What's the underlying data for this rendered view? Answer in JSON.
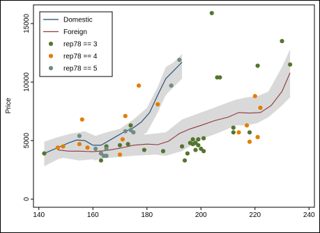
{
  "chart_data": {
    "type": "scatter",
    "title": "",
    "xlabel": "",
    "ylabel": "Price",
    "xlim": [
      138,
      242
    ],
    "ylim": [
      -700,
      16600
    ],
    "x_ticks": [
      140,
      160,
      180,
      200,
      220,
      240
    ],
    "y_ticks": [
      0,
      5000,
      10000,
      15000
    ],
    "grid": false,
    "legend": {
      "position": "top-left",
      "entries": [
        {
          "label": "Domestic",
          "kind": "line",
          "color": "#1a476f"
        },
        {
          "label": "Foreign",
          "kind": "line",
          "color": "#90353b"
        },
        {
          "label": "rep78 == 3",
          "kind": "marker",
          "color": "#55752f"
        },
        {
          "label": "rep78 == 4",
          "kind": "marker",
          "color": "#e37e00"
        },
        {
          "label": "rep78 == 5",
          "kind": "marker",
          "color": "#6e8e84"
        }
      ]
    },
    "bands": [
      {
        "name": "Domestic",
        "color": "#d9d9d9",
        "x": [
          142,
          147,
          152,
          157,
          161,
          165,
          170,
          175,
          180,
          184,
          187,
          190,
          193
        ],
        "lower": [
          2800,
          3400,
          3700,
          3700,
          3300,
          3700,
          4100,
          4900,
          5700,
          7400,
          8900,
          9600,
          10300
        ],
        "upper": [
          4900,
          5300,
          5600,
          5800,
          5400,
          5700,
          6000,
          6800,
          7800,
          9600,
          11300,
          11700,
          12400
        ]
      },
      {
        "name": "Foreign",
        "color": "#d9d9d9",
        "x": [
          147,
          155,
          165,
          175,
          183,
          187,
          193,
          200,
          207,
          213,
          217,
          221,
          225,
          230,
          233
        ],
        "lower": [
          3600,
          3300,
          3500,
          3700,
          3800,
          3700,
          4100,
          5100,
          5700,
          6300,
          6300,
          6500,
          7000,
          8000,
          8700
        ],
        "upper": [
          4700,
          4700,
          4600,
          5400,
          5600,
          5700,
          6800,
          7400,
          8000,
          8500,
          8700,
          8800,
          9200,
          11300,
          12800
        ]
      }
    ],
    "series": [
      {
        "name": "Domestic",
        "type": "line",
        "color": "#1a476f",
        "x": [
          142,
          145,
          148,
          151,
          154,
          157,
          160,
          163,
          166,
          169,
          172,
          175,
          178,
          181,
          184,
          187,
          190,
          193
        ],
        "y": [
          3900,
          4200,
          4500,
          4800,
          5050,
          5000,
          4600,
          4600,
          5000,
          5400,
          5800,
          6100,
          6600,
          7400,
          8900,
          10300,
          11000,
          11700
        ]
      },
      {
        "name": "Foreign",
        "type": "line",
        "color": "#90353b",
        "x": [
          147,
          151,
          155,
          160,
          165,
          170,
          175,
          180,
          184,
          188,
          192,
          196,
          200,
          205,
          210,
          214,
          218,
          222,
          226,
          230,
          233
        ],
        "y": [
          4200,
          4100,
          4100,
          4050,
          4150,
          4350,
          4600,
          4700,
          4650,
          4950,
          5600,
          6000,
          6300,
          6700,
          7000,
          7400,
          7350,
          7400,
          8000,
          9200,
          10800
        ]
      },
      {
        "name": "rep78 == 3",
        "type": "scatter",
        "color": "#55752f",
        "x": [
          142,
          163,
          165,
          170,
          173,
          174,
          179,
          186,
          193,
          194,
          195,
          196,
          197,
          197,
          198,
          198,
          199,
          199,
          200,
          201,
          201,
          204,
          206,
          207,
          212,
          212,
          218,
          221,
          230,
          233
        ],
        "y": [
          3900,
          3300,
          4500,
          4600,
          4700,
          6300,
          4200,
          4100,
          4500,
          3300,
          3900,
          4800,
          4700,
          5100,
          4200,
          4800,
          5100,
          4600,
          4300,
          4100,
          5200,
          15900,
          10400,
          10400,
          6100,
          5700,
          5700,
          11400,
          13500,
          11500
        ],
        "names": []
      },
      {
        "name": "rep78 == 4",
        "type": "scatter",
        "color": "#e37e00",
        "x": [
          147,
          149,
          155,
          156,
          158,
          170,
          171,
          172,
          177,
          184,
          214,
          217,
          218,
          220,
          221,
          222
        ],
        "y": [
          4400,
          4500,
          4700,
          6800,
          4400,
          3800,
          5100,
          7100,
          9700,
          8100,
          5700,
          6300,
          4900,
          8800,
          5300,
          7800
        ],
        "names": []
      },
      {
        "name": "rep78 == 5",
        "type": "scatter",
        "color": "#6e8e84",
        "x": [
          155,
          161,
          163,
          164,
          165,
          165,
          172,
          174,
          175,
          189,
          192
        ],
        "y": [
          5400,
          4300,
          3900,
          3700,
          4300,
          3700,
          5800,
          5900,
          5700,
          9700,
          11900
        ],
        "names": []
      }
    ]
  }
}
